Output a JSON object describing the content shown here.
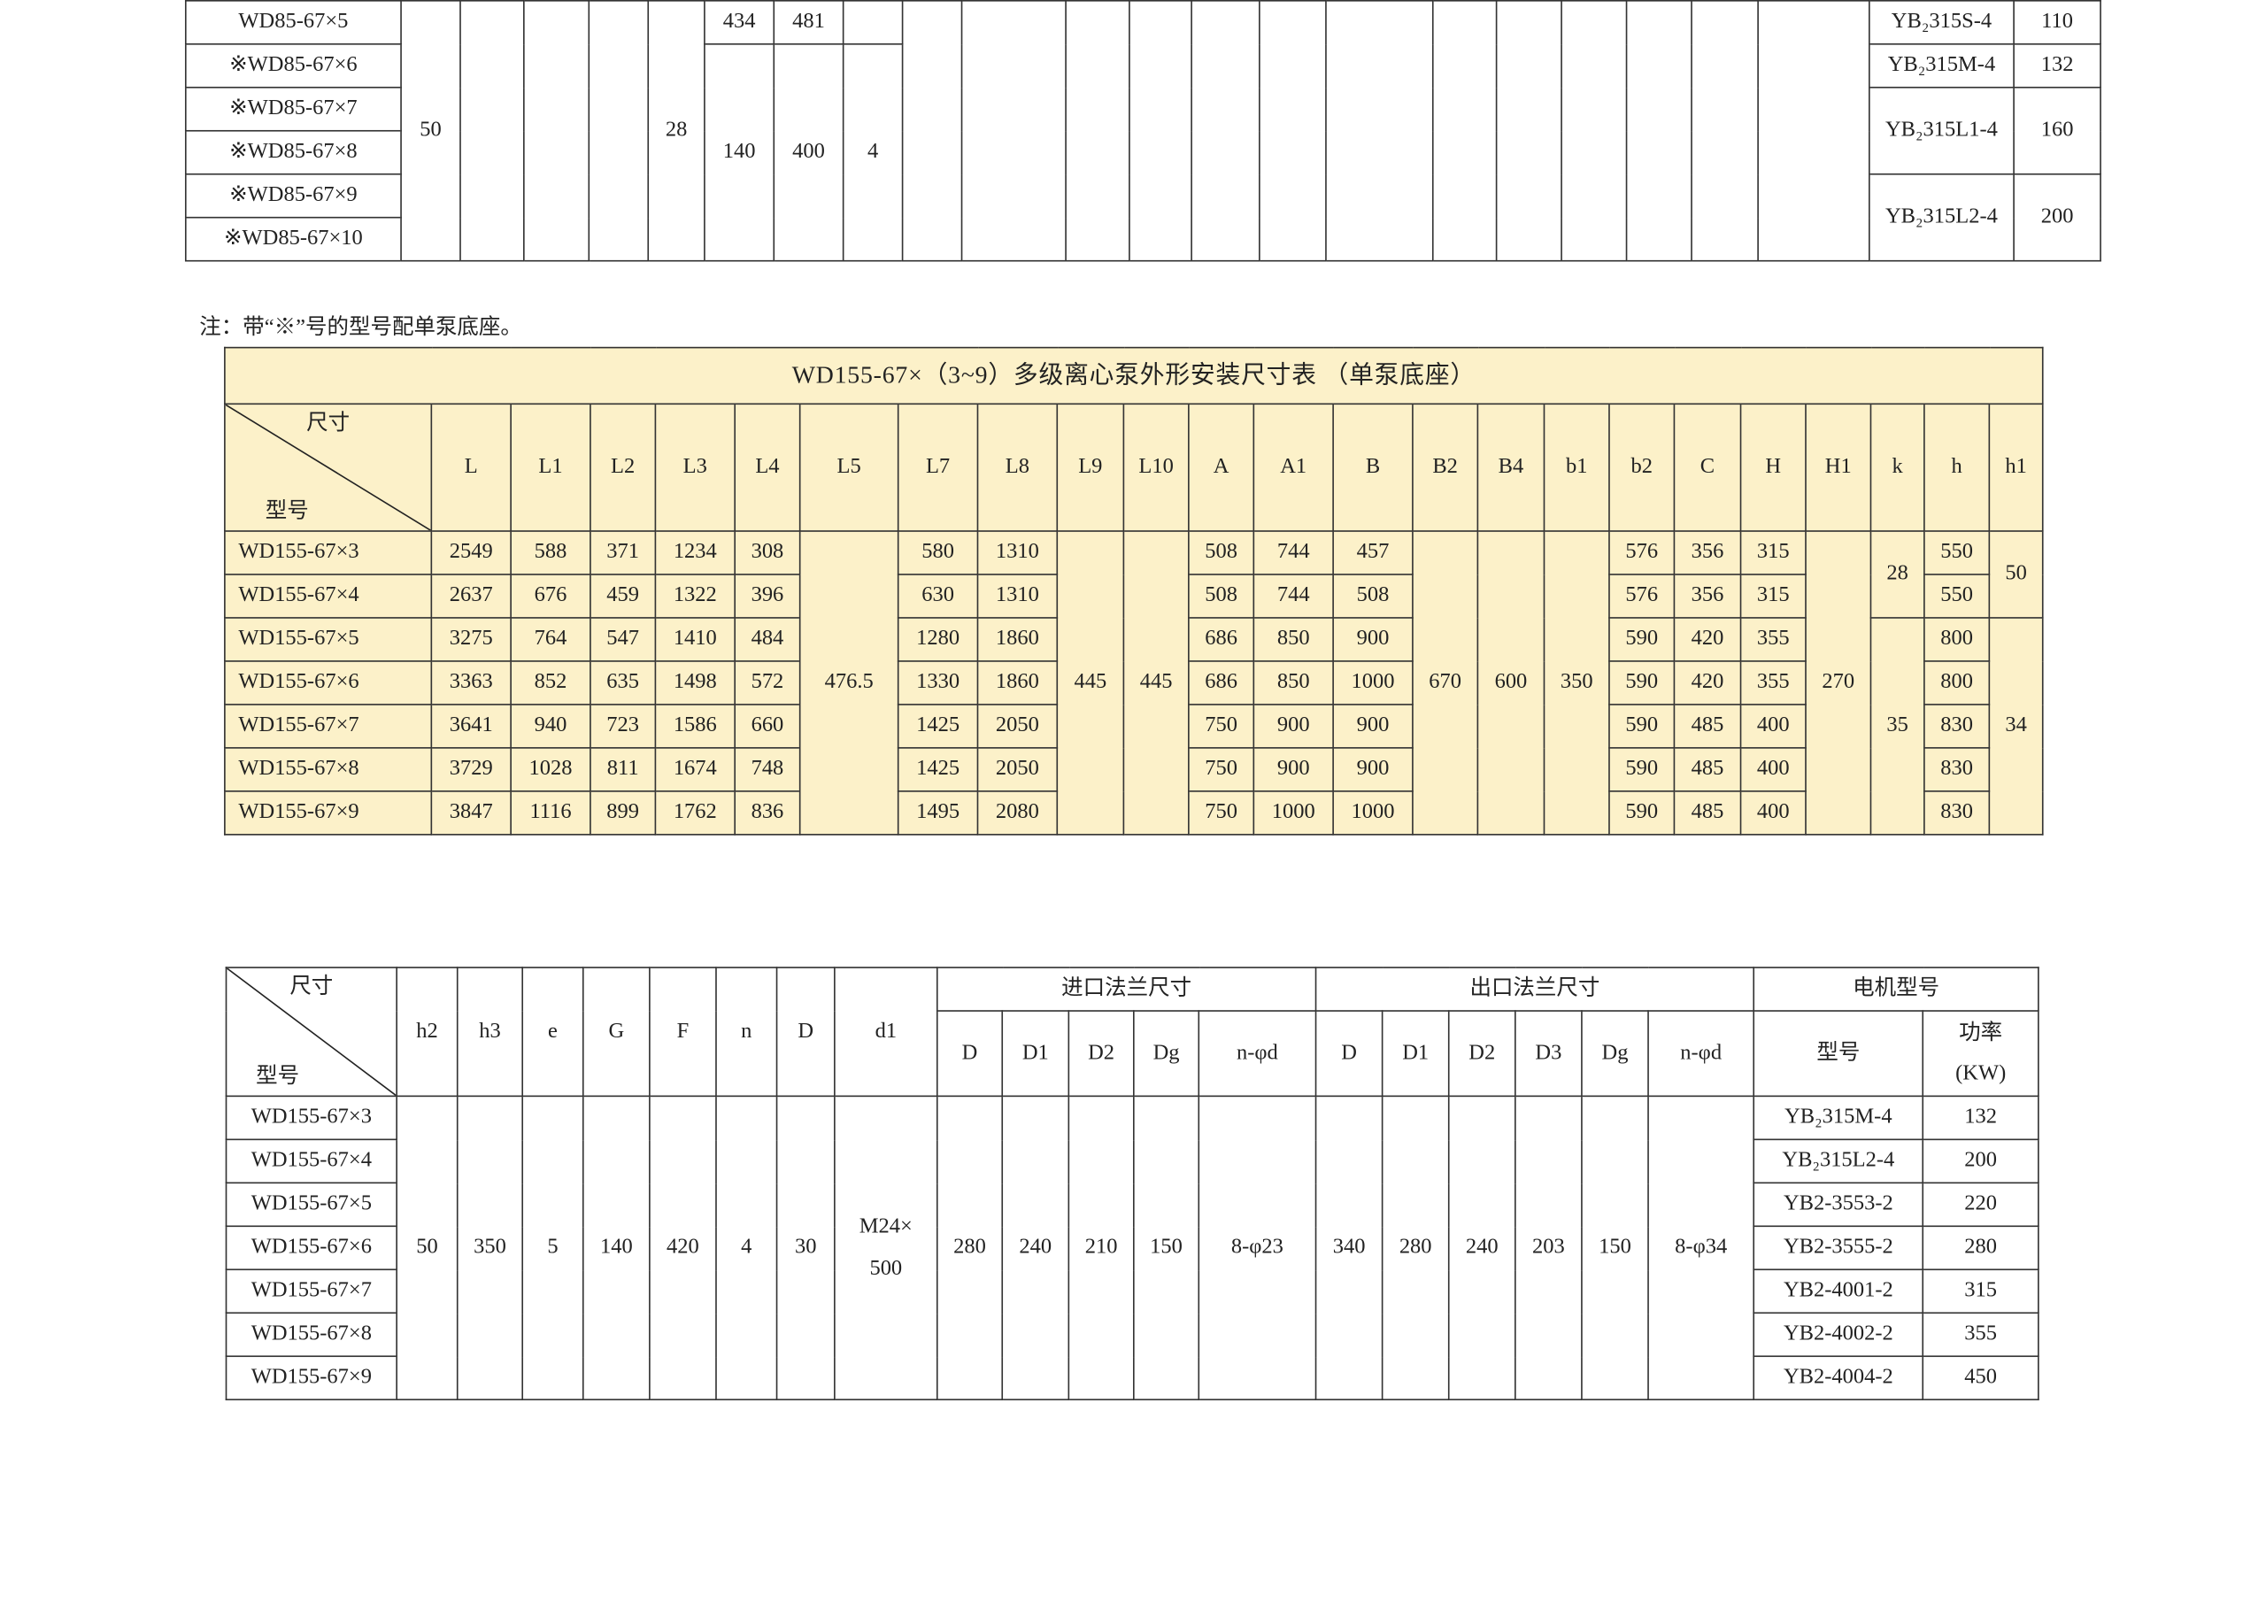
{
  "top_table": {
    "columns": [
      {
        "header": "",
        "cells": [
          "WD85-67×5",
          "※WD85-67×6",
          "※WD85-67×7",
          "※WD85-67×8",
          "※WD85-67×9",
          "※WD85-67×10"
        ]
      },
      {
        "header": "",
        "cells": [
          {
            "v": "50",
            "span": 6
          }
        ]
      },
      {
        "header": "",
        "cells": [
          {
            "v": "",
            "span": 6
          }
        ]
      },
      {
        "header": "",
        "cells": [
          {
            "v": "",
            "span": 6
          }
        ]
      },
      {
        "header": "",
        "cells": [
          {
            "v": "",
            "span": 6
          }
        ]
      },
      {
        "header": "",
        "cells": [
          {
            "v": "28",
            "span": 6
          }
        ]
      },
      {
        "header": "",
        "cells": [
          "434",
          {
            "v": "140",
            "span": 5
          }
        ]
      },
      {
        "header": "",
        "cells": [
          "481",
          {
            "v": "400",
            "span": 5
          }
        ]
      },
      {
        "header": "",
        "cells": [
          "",
          {
            "v": "4",
            "span": 5
          }
        ]
      },
      {
        "header": "",
        "cells": [
          {
            "v": "",
            "span": 6
          }
        ]
      },
      {
        "header": "",
        "cells": [
          {
            "v": "",
            "span": 6
          }
        ]
      },
      {
        "header": "",
        "cells": [
          {
            "v": "",
            "span": 6
          }
        ]
      },
      {
        "header": "",
        "cells": [
          {
            "v": "",
            "span": 6
          }
        ]
      },
      {
        "header": "",
        "cells": [
          {
            "v": "",
            "span": 6
          }
        ]
      },
      {
        "header": "",
        "cells": [
          {
            "v": "",
            "span": 6
          }
        ]
      },
      {
        "header": "",
        "cells": [
          {
            "v": "",
            "span": 6
          }
        ]
      },
      {
        "header": "",
        "cells": [
          {
            "v": "",
            "span": 6
          }
        ]
      },
      {
        "header": "",
        "cells": [
          {
            "v": "",
            "span": 6
          }
        ]
      },
      {
        "header": "",
        "cells": [
          {
            "v": "",
            "span": 6
          }
        ]
      },
      {
        "header": "",
        "cells": [
          {
            "v": "",
            "span": 6
          }
        ]
      },
      {
        "header": "",
        "cells": [
          {
            "v": "",
            "span": 6
          }
        ]
      },
      {
        "header": "",
        "cells": [
          {
            "v": "",
            "span": 6
          }
        ]
      },
      {
        "header": "",
        "cells": [
          "YB₂315S-4",
          "YB₂315M-4",
          {
            "v": "YB₂315L1-4",
            "span": 2
          },
          {
            "v": "YB₂315L2-4",
            "span": 2
          }
        ]
      },
      {
        "header": "",
        "cells": [
          "110",
          "132",
          {
            "v": "160",
            "span": 2
          },
          {
            "v": "200",
            "span": 2
          }
        ]
      }
    ]
  },
  "note": "注：带“※”号的型号配单泵底座。",
  "mid_table": {
    "title": "WD155-67×（3~9）多级离心泵外形安装尺寸表 （单泵底座）",
    "diag_top": "尺寸",
    "diag_bottom": "型号",
    "background": "#fcf1c9",
    "columns": [
      {
        "header": "",
        "cells": [
          "WD155-67×3",
          "WD155-67×4",
          "WD155-67×5",
          "WD155-67×6",
          "WD155-67×7",
          "WD155-67×8",
          "WD155-67×9"
        ]
      },
      {
        "header": "L",
        "cells": [
          "2549",
          "2637",
          "3275",
          "3363",
          "3641",
          "3729",
          "3847"
        ]
      },
      {
        "header": "L1",
        "cells": [
          "588",
          "676",
          "764",
          "852",
          "940",
          "1028",
          "1116"
        ]
      },
      {
        "header": "L2",
        "cells": [
          "371",
          "459",
          "547",
          "635",
          "723",
          "811",
          "899"
        ]
      },
      {
        "header": "L3",
        "cells": [
          "1234",
          "1322",
          "1410",
          "1498",
          "1586",
          "1674",
          "1762"
        ]
      },
      {
        "header": "L4",
        "cells": [
          "308",
          "396",
          "484",
          "572",
          "660",
          "748",
          "836"
        ]
      },
      {
        "header": "L5",
        "cells": [
          {
            "v": "476.5",
            "span": 7
          }
        ]
      },
      {
        "header": "L7",
        "cells": [
          "580",
          "630",
          "1280",
          "1330",
          "1425",
          "1425",
          "1495"
        ]
      },
      {
        "header": "L8",
        "cells": [
          "1310",
          "1310",
          "1860",
          "1860",
          "2050",
          "2050",
          "2080"
        ]
      },
      {
        "header": "L9",
        "cells": [
          {
            "v": "445",
            "span": 7
          }
        ]
      },
      {
        "header": "L10",
        "cells": [
          {
            "v": "445",
            "span": 7
          }
        ]
      },
      {
        "header": "A",
        "cells": [
          "508",
          "508",
          "686",
          "686",
          "750",
          "750",
          "750"
        ]
      },
      {
        "header": "A1",
        "cells": [
          "744",
          "744",
          "850",
          "850",
          "900",
          "900",
          "1000"
        ]
      },
      {
        "header": "B",
        "cells": [
          "457",
          "508",
          "900",
          "1000",
          "900",
          "900",
          "1000"
        ]
      },
      {
        "header": "B2",
        "cells": [
          {
            "v": "670",
            "span": 7
          }
        ]
      },
      {
        "header": "B4",
        "cells": [
          {
            "v": "600",
            "span": 7
          }
        ]
      },
      {
        "header": "b1",
        "cells": [
          {
            "v": "350",
            "span": 7
          }
        ]
      },
      {
        "header": "b2",
        "cells": [
          "576",
          "576",
          "590",
          "590",
          "590",
          "590",
          "590"
        ]
      },
      {
        "header": "C",
        "cells": [
          "356",
          "356",
          "420",
          "420",
          "485",
          "485",
          "485"
        ]
      },
      {
        "header": "H",
        "cells": [
          "315",
          "315",
          "355",
          "355",
          "400",
          "400",
          "400"
        ]
      },
      {
        "header": "H1",
        "cells": [
          {
            "v": "270",
            "span": 7
          }
        ]
      },
      {
        "header": "k",
        "cells": [
          {
            "v": "28",
            "span": 2
          },
          {
            "v": "35",
            "span": 5
          }
        ]
      },
      {
        "header": "h",
        "cells": [
          "550",
          "550",
          "800",
          "800",
          "830",
          "830",
          "830"
        ]
      },
      {
        "header": "h1",
        "cells": [
          {
            "v": "50",
            "span": 2
          },
          {
            "v": "34",
            "span": 5
          }
        ]
      }
    ]
  },
  "bot_table": {
    "diag_top": "尺寸",
    "diag_bottom": "型号",
    "groups": [
      "进口法兰尺寸",
      "出口法兰尺寸",
      "电机型号"
    ],
    "columns": [
      {
        "header": "",
        "cells": [
          "WD155-67×3",
          "WD155-67×4",
          "WD155-67×5",
          "WD155-67×6",
          "WD155-67×7",
          "WD155-67×8",
          "WD155-67×9"
        ]
      },
      {
        "header": "h2",
        "cells": [
          {
            "v": "50",
            "span": 7
          }
        ]
      },
      {
        "header": "h3",
        "cells": [
          {
            "v": "350",
            "span": 7
          }
        ]
      },
      {
        "header": "e",
        "cells": [
          {
            "v": "5",
            "span": 7
          }
        ]
      },
      {
        "header": "G",
        "cells": [
          {
            "v": "140",
            "span": 7
          }
        ]
      },
      {
        "header": "F",
        "cells": [
          {
            "v": "420",
            "span": 7
          }
        ]
      },
      {
        "header": "n",
        "cells": [
          {
            "v": "4",
            "span": 7
          }
        ]
      },
      {
        "header": "D",
        "cells": [
          {
            "v": "30",
            "span": 7
          }
        ]
      },
      {
        "header": "d1",
        "cells": [
          {
            "v": "M24×\n500",
            "span": 7
          }
        ]
      },
      {
        "header": "D",
        "group": 0,
        "cells": [
          {
            "v": "280",
            "span": 7
          }
        ]
      },
      {
        "header": "D1",
        "group": 0,
        "cells": [
          {
            "v": "240",
            "span": 7
          }
        ]
      },
      {
        "header": "D2",
        "group": 0,
        "cells": [
          {
            "v": "210",
            "span": 7
          }
        ]
      },
      {
        "header": "Dg",
        "group": 0,
        "cells": [
          {
            "v": "150",
            "span": 7
          }
        ]
      },
      {
        "header": "n-φd",
        "group": 0,
        "cells": [
          {
            "v": "8-φ23",
            "span": 7
          }
        ]
      },
      {
        "header": "D",
        "group": 1,
        "cells": [
          {
            "v": "340",
            "span": 7
          }
        ]
      },
      {
        "header": "D1",
        "group": 1,
        "cells": [
          {
            "v": "280",
            "span": 7
          }
        ]
      },
      {
        "header": "D2",
        "group": 1,
        "cells": [
          {
            "v": "240",
            "span": 7
          }
        ]
      },
      {
        "header": "D3",
        "group": 1,
        "cells": [
          {
            "v": "203",
            "span": 7
          }
        ]
      },
      {
        "header": "Dg",
        "group": 1,
        "cells": [
          {
            "v": "150",
            "span": 7
          }
        ]
      },
      {
        "header": "n-φd",
        "group": 1,
        "cells": [
          {
            "v": "8-φ34",
            "span": 7
          }
        ]
      },
      {
        "header": "型号",
        "group": 2,
        "cells": [
          "YB₂315M-4",
          "YB₂315L2-4",
          "YB2-3553-2",
          "YB2-3555-2",
          "YB2-4001-2",
          "YB2-4002-2",
          "YB2-4004-2"
        ]
      },
      {
        "header": "功率\n(KW)",
        "group": 2,
        "cells": [
          "132",
          "200",
          "220",
          "280",
          "315",
          "355",
          "450"
        ]
      }
    ]
  }
}
